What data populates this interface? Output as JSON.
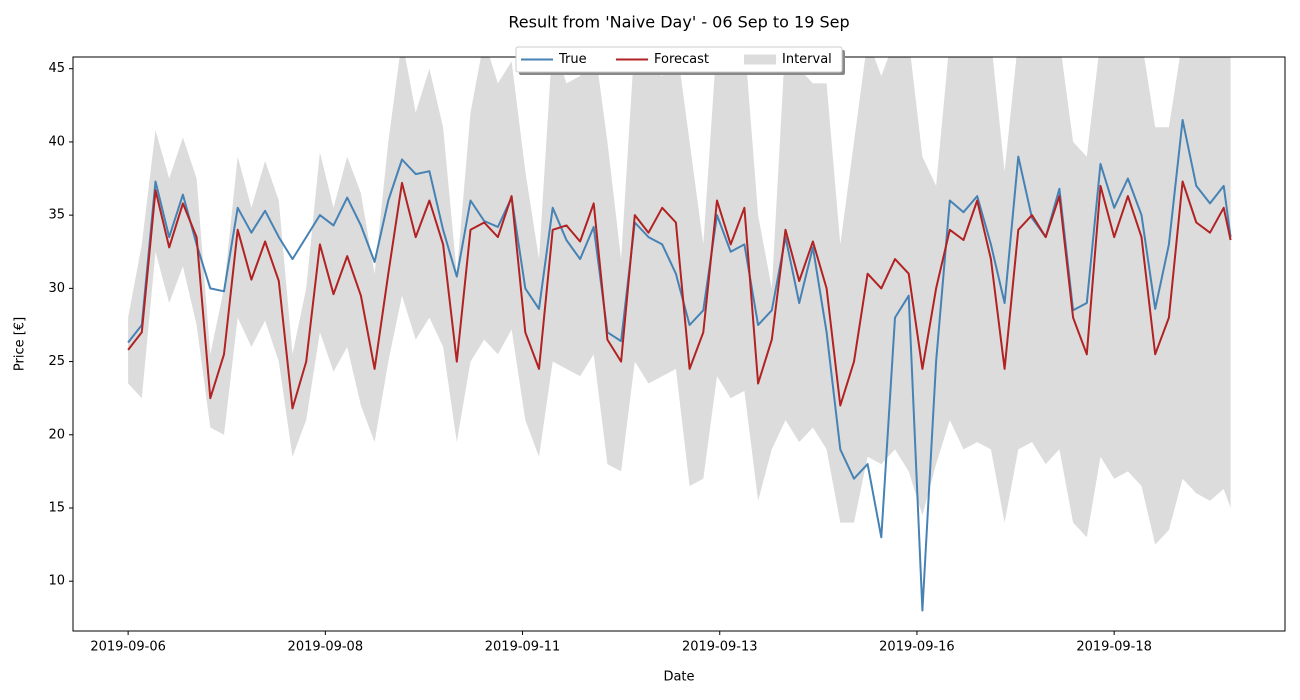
{
  "chart_data": {
    "type": "line",
    "title": "Result from 'Naive Day' - 06 Sep to 19 Sep",
    "x_label": "Date",
    "y_label": "Price [€]",
    "x": [
      0,
      4,
      8,
      12,
      16,
      20,
      24,
      28,
      32,
      36,
      40,
      44,
      48,
      52,
      56,
      60,
      64,
      68,
      72,
      76,
      80,
      84,
      88,
      92,
      96,
      100,
      104,
      108,
      112,
      116,
      120,
      124,
      128,
      132,
      136,
      140,
      144,
      148,
      152,
      156,
      160,
      164,
      168,
      172,
      176,
      180,
      184,
      188,
      192,
      196,
      200,
      204,
      208,
      212,
      216,
      220,
      224,
      228,
      232,
      236,
      240,
      244,
      248,
      252,
      256,
      260,
      264,
      268,
      272,
      276,
      280,
      284,
      288,
      292,
      296,
      300,
      304,
      308,
      312,
      316,
      320,
      322
    ],
    "series": [
      {
        "name": "True",
        "color": "#4682b4",
        "values": [
          26.3,
          27.5,
          37.3,
          33.5,
          36.4,
          33,
          30,
          29.8,
          35.5,
          33.8,
          35.3,
          33.5,
          32,
          33.5,
          35,
          34.3,
          36.2,
          34.3,
          31.8,
          36,
          38.8,
          37.8,
          38,
          34,
          30.8,
          36,
          34.6,
          34.2,
          36.2,
          30,
          28.6,
          35.5,
          33.3,
          32,
          34.2,
          27,
          26.4,
          34.5,
          33.5,
          33,
          31,
          27.5,
          28.5,
          35,
          32.5,
          33,
          27.5,
          28.5,
          33.5,
          29,
          32.8,
          27,
          19,
          17,
          18,
          13,
          28,
          29.5,
          8,
          25,
          36,
          35.2,
          36.3,
          33,
          29,
          39,
          34.8,
          33.5,
          36.8,
          28.5,
          29,
          38.5,
          35.5,
          37.5,
          35,
          28.6,
          33,
          41.5,
          37,
          35.8,
          37,
          33.5
        ]
      },
      {
        "name": "Forecast",
        "color": "#b22222",
        "values": [
          25.8,
          27,
          36.7,
          32.8,
          35.8,
          33.5,
          22.5,
          25.5,
          34,
          30.6,
          33.2,
          30.5,
          21.8,
          25,
          33,
          29.6,
          32.2,
          29.5,
          24.5,
          31,
          37.2,
          33.5,
          36,
          33,
          25,
          34,
          34.5,
          33.5,
          36.3,
          27,
          24.5,
          34,
          34.3,
          33.2,
          35.8,
          26.5,
          25,
          35,
          33.8,
          35.5,
          34.5,
          24.5,
          27,
          36,
          33,
          35.5,
          23.5,
          26.5,
          34,
          30.5,
          33.2,
          30,
          22,
          25,
          31,
          30,
          32,
          31,
          24.5,
          30,
          34,
          33.3,
          36,
          32,
          24.5,
          34,
          35,
          33.5,
          36.3,
          28,
          25.5,
          37,
          33.5,
          36.3,
          33.5,
          25.5,
          28,
          37.3,
          34.5,
          33.8,
          35.5,
          33.3
        ]
      }
    ],
    "interval": {
      "name": "Interval",
      "color": "#dcdcdc",
      "upper": [
        28,
        33,
        40.8,
        37.5,
        40.3,
        37.5,
        25.5,
        30,
        39,
        35.5,
        38.7,
        36,
        25.5,
        30,
        39.3,
        35.5,
        39,
        36.5,
        31,
        40,
        47,
        42,
        45,
        41,
        31,
        42,
        47,
        44,
        45.5,
        38,
        32,
        47,
        44,
        44.5,
        47,
        40,
        32,
        47,
        45,
        44.5,
        47,
        40,
        33,
        47,
        47,
        47,
        35,
        30,
        47,
        45,
        44,
        44,
        33,
        40,
        47,
        44.5,
        47,
        47,
        39,
        37,
        47,
        47,
        47,
        47,
        38,
        47,
        47,
        47,
        47,
        40,
        39,
        47,
        47,
        47,
        47,
        41,
        41,
        47,
        47,
        47,
        47,
        47
      ],
      "lower": [
        23.5,
        22.5,
        32.5,
        29,
        31.5,
        27.5,
        20.5,
        20,
        28,
        26,
        27.8,
        25,
        18.5,
        21,
        27,
        24.3,
        26,
        22,
        19.5,
        25,
        29.5,
        26.5,
        28,
        26,
        19.5,
        25,
        26.5,
        25.5,
        27.2,
        21,
        18.5,
        25,
        24.5,
        24,
        25.5,
        18,
        17.5,
        25,
        23.5,
        24,
        24.5,
        16.5,
        17,
        24,
        22.5,
        23,
        15.5,
        19,
        21,
        19.5,
        20.5,
        19,
        14,
        14,
        18.5,
        18,
        19,
        17.5,
        14.5,
        18,
        21,
        19,
        19.5,
        19,
        14,
        19,
        19.5,
        18,
        19,
        14,
        13,
        18.5,
        17,
        17.5,
        16.5,
        12.5,
        13.5,
        17,
        16,
        15.5,
        16.3,
        15
      ]
    },
    "xlim": [
      -16.1,
      337.9
    ],
    "xticks": [
      {
        "value": 0,
        "label": "2019-09-06"
      },
      {
        "value": 57.6,
        "label": "2019-09-08"
      },
      {
        "value": 115.2,
        "label": "2019-09-11"
      },
      {
        "value": 172.8,
        "label": "2019-09-13"
      },
      {
        "value": 230.4,
        "label": "2019-09-16"
      },
      {
        "value": 288,
        "label": "2019-09-18"
      }
    ],
    "ylim": [
      6.6,
      45.8
    ],
    "yticks": [
      10,
      15,
      20,
      25,
      30,
      35,
      40,
      45
    ],
    "legend": "upper center",
    "grid": false
  }
}
